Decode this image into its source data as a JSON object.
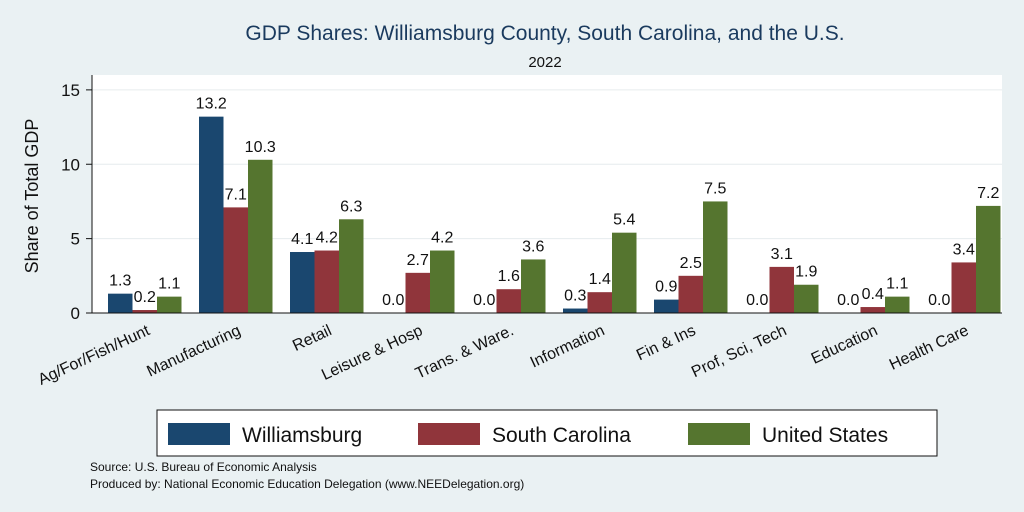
{
  "chart_data": {
    "type": "bar",
    "title": "GDP Shares: Williamsburg County, South Carolina, and the U.S.",
    "subtitle": "2022",
    "ylabel": "Share of Total GDP",
    "xlabel": "",
    "ylim": [
      0,
      16
    ],
    "yticks": [
      0,
      5,
      10,
      15
    ],
    "grid": true,
    "legend_position": "bottom",
    "categories": [
      "Ag/For/Fish/Hunt",
      "Manufacturing",
      "Retail",
      "Leisure & Hosp",
      "Trans. & Ware.",
      "Information",
      "Fin & Ins",
      "Prof, Sci, Tech",
      "Education",
      "Health Care"
    ],
    "series": [
      {
        "name": "Williamsburg",
        "color": "#1a476f",
        "values": [
          1.3,
          13.2,
          4.1,
          0.0,
          0.0,
          0.3,
          0.9,
          0.0,
          0.0,
          0.0
        ]
      },
      {
        "name": "South Carolina",
        "color": "#90353b",
        "values": [
          0.2,
          7.1,
          4.2,
          2.7,
          1.6,
          1.4,
          2.5,
          3.1,
          0.4,
          3.4
        ]
      },
      {
        "name": "United States",
        "color": "#55752f",
        "values": [
          1.1,
          10.3,
          6.3,
          4.2,
          3.6,
          5.4,
          7.5,
          1.9,
          1.1,
          7.2
        ]
      }
    ]
  },
  "source": {
    "line1": "Source: U.S. Bureau of Economic Analysis",
    "line2": "Produced by: National Economic Education Delegation (www.NEEDelegation.org)"
  }
}
